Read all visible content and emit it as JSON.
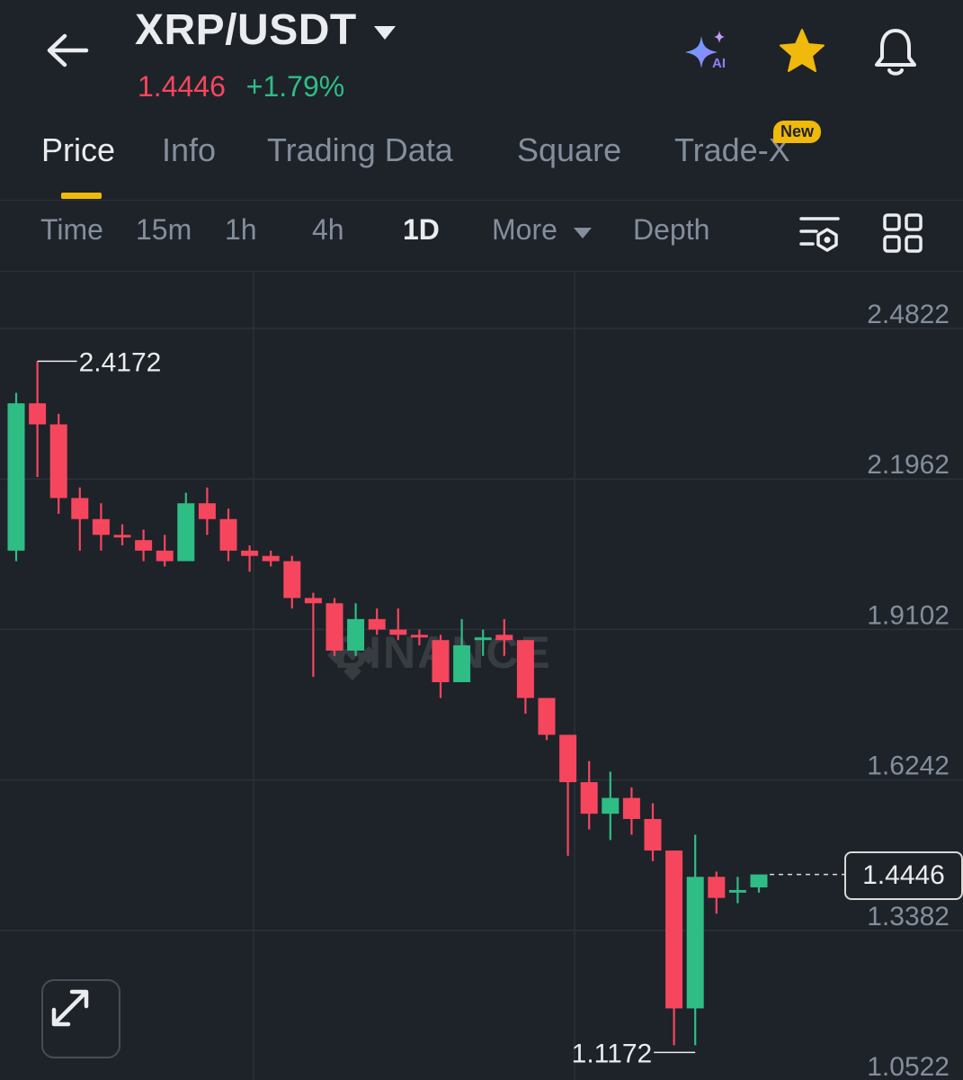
{
  "header": {
    "back_icon": "arrow-left-icon",
    "pair": "XRP/USDT",
    "last_price": "1.4446",
    "change_percent": "+1.79%",
    "icons": [
      "ai-sparkle-icon",
      "star-icon",
      "bell-icon"
    ],
    "ai_label": "AI"
  },
  "tabs": {
    "items": [
      "Price",
      "Info",
      "Trading Data",
      "Square",
      "Trade-X"
    ],
    "active": "Price",
    "new_badge": "New"
  },
  "intervals": {
    "items": [
      "Time",
      "15m",
      "1h",
      "4h",
      "1D",
      "More",
      "Depth"
    ],
    "active": "1D",
    "icons": [
      "chart-settings-icon",
      "grid-layout-icon"
    ]
  },
  "chart_data": {
    "type": "candlestick",
    "watermark": "BINANCE",
    "y_ticks": [
      2.4822,
      2.1962,
      1.9102,
      1.6242,
      1.3382,
      1.0522
    ],
    "y_tick_labels": [
      "2.4822",
      "2.1962",
      "1.9102",
      "1.6242",
      "1.3382",
      "1.0522"
    ],
    "high_marker": "2.4172",
    "low_marker": "1.1172",
    "last_price_label": "1.4446",
    "colors": {
      "up": "#2ebd85",
      "down": "#f6465d",
      "background": "#1e2329",
      "grid": "#2b3139"
    },
    "candles": [
      {
        "o": 2.06,
        "h": 2.36,
        "l": 2.04,
        "c": 2.34
      },
      {
        "o": 2.34,
        "h": 2.42,
        "l": 2.2,
        "c": 2.3
      },
      {
        "o": 2.3,
        "h": 2.32,
        "l": 2.13,
        "c": 2.16
      },
      {
        "o": 2.16,
        "h": 2.18,
        "l": 2.06,
        "c": 2.12
      },
      {
        "o": 2.12,
        "h": 2.15,
        "l": 2.06,
        "c": 2.09
      },
      {
        "o": 2.09,
        "h": 2.11,
        "l": 2.07,
        "c": 2.085
      },
      {
        "o": 2.08,
        "h": 2.1,
        "l": 2.04,
        "c": 2.06
      },
      {
        "o": 2.06,
        "h": 2.09,
        "l": 2.03,
        "c": 2.04
      },
      {
        "o": 2.04,
        "h": 2.17,
        "l": 2.04,
        "c": 2.15
      },
      {
        "o": 2.15,
        "h": 2.18,
        "l": 2.09,
        "c": 2.12
      },
      {
        "o": 2.12,
        "h": 2.14,
        "l": 2.04,
        "c": 2.06
      },
      {
        "o": 2.06,
        "h": 2.07,
        "l": 2.02,
        "c": 2.05
      },
      {
        "o": 2.05,
        "h": 2.06,
        "l": 2.03,
        "c": 2.04
      },
      {
        "o": 2.04,
        "h": 2.05,
        "l": 1.95,
        "c": 1.97
      },
      {
        "o": 1.97,
        "h": 1.98,
        "l": 1.82,
        "c": 1.96
      },
      {
        "o": 1.96,
        "h": 1.97,
        "l": 1.86,
        "c": 1.87
      },
      {
        "o": 1.87,
        "h": 1.96,
        "l": 1.86,
        "c": 1.93
      },
      {
        "o": 1.93,
        "h": 1.95,
        "l": 1.9,
        "c": 1.91
      },
      {
        "o": 1.91,
        "h": 1.95,
        "l": 1.89,
        "c": 1.9
      },
      {
        "o": 1.9,
        "h": 1.91,
        "l": 1.88,
        "c": 1.895
      },
      {
        "o": 1.89,
        "h": 1.9,
        "l": 1.78,
        "c": 1.81
      },
      {
        "o": 1.81,
        "h": 1.93,
        "l": 1.81,
        "c": 1.88
      },
      {
        "o": 1.89,
        "h": 1.91,
        "l": 1.86,
        "c": 1.895
      },
      {
        "o": 1.9,
        "h": 1.93,
        "l": 1.86,
        "c": 1.89
      },
      {
        "o": 1.89,
        "h": 1.89,
        "l": 1.75,
        "c": 1.78
      },
      {
        "o": 1.78,
        "h": 1.78,
        "l": 1.7,
        "c": 1.71
      },
      {
        "o": 1.71,
        "h": 1.71,
        "l": 1.48,
        "c": 1.62
      },
      {
        "o": 1.62,
        "h": 1.66,
        "l": 1.53,
        "c": 1.56
      },
      {
        "o": 1.56,
        "h": 1.64,
        "l": 1.51,
        "c": 1.59
      },
      {
        "o": 1.59,
        "h": 1.61,
        "l": 1.52,
        "c": 1.55
      },
      {
        "o": 1.55,
        "h": 1.58,
        "l": 1.47,
        "c": 1.49
      },
      {
        "o": 1.49,
        "h": 1.49,
        "l": 1.12,
        "c": 1.19
      },
      {
        "o": 1.19,
        "h": 1.52,
        "l": 1.12,
        "c": 1.44
      },
      {
        "o": 1.44,
        "h": 1.45,
        "l": 1.37,
        "c": 1.4
      },
      {
        "o": 1.41,
        "h": 1.44,
        "l": 1.39,
        "c": 1.415
      },
      {
        "o": 1.42,
        "h": 1.435,
        "l": 1.41,
        "c": 1.4446
      }
    ]
  }
}
